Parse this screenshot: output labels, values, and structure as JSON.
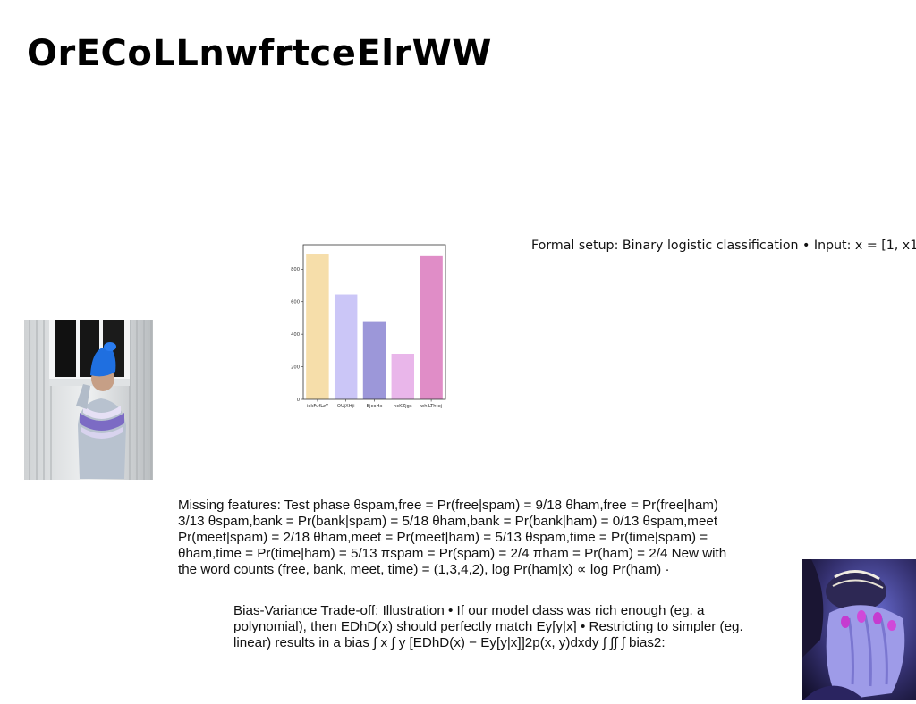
{
  "slide": {
    "title": "OrECoLLnwfrtceElrWW"
  },
  "images": {
    "left_photo": "person in blue knit hat and patterned sweater at a window",
    "right_photo": "hands with purple painted nails covering a face"
  },
  "chart_data": {
    "type": "bar",
    "title": "",
    "xlabel": "",
    "ylabel": "",
    "categories": [
      "iekFufLzY",
      "OUjXHji",
      "BjcoHx",
      "ncKZjgs",
      "whiLThtej"
    ],
    "values": [
      895,
      645,
      480,
      280,
      885
    ],
    "ylim": [
      0,
      950
    ],
    "yticks": [
      0,
      200,
      400,
      600,
      800
    ],
    "colors": [
      "#f6deaa",
      "#cbc6f7",
      "#9c97d9",
      "#e9b6ea",
      "#e08dc7"
    ],
    "grid": false,
    "legend": "none"
  },
  "texts": {
    "formal_setup": "Formal setup: Binary logistic classification • Input: x = [1, x1,",
    "missing_features": "Missing features: Test phase θspam,free = Pr(free|spam) = 9/18 θham,free = Pr(free|ham) 3/13 θspam,bank = Pr(bank|spam) = 5/18 θham,bank = Pr(bank|ham) = 0/13 θspam,meet Pr(meet|spam) = 2/18 θham,meet = Pr(meet|ham) = 5/13 θspam,time = Pr(time|spam) = θham,time = Pr(time|ham) = 5/13 πspam = Pr(spam) = 2/4 πham = Pr(ham) = 2/4 New with the word counts (free, bank, meet, time) = (1,3,4,2), log Pr(ham|x) ∝ log Pr(ham) ·",
    "bias_variance": "Bias-Variance Trade-off: Illustration • If our model class was rich enough (eg. a polynomial), then EDhD(x) should perfectly match Ey[y|x] • Restricting to simpler (eg. linear) results in a bias ∫ x ∫ y [EDhD(x) − Ey[y|x]]2p(x, y)dxdy ∫ ∫∫ ∫ bias2:"
  }
}
